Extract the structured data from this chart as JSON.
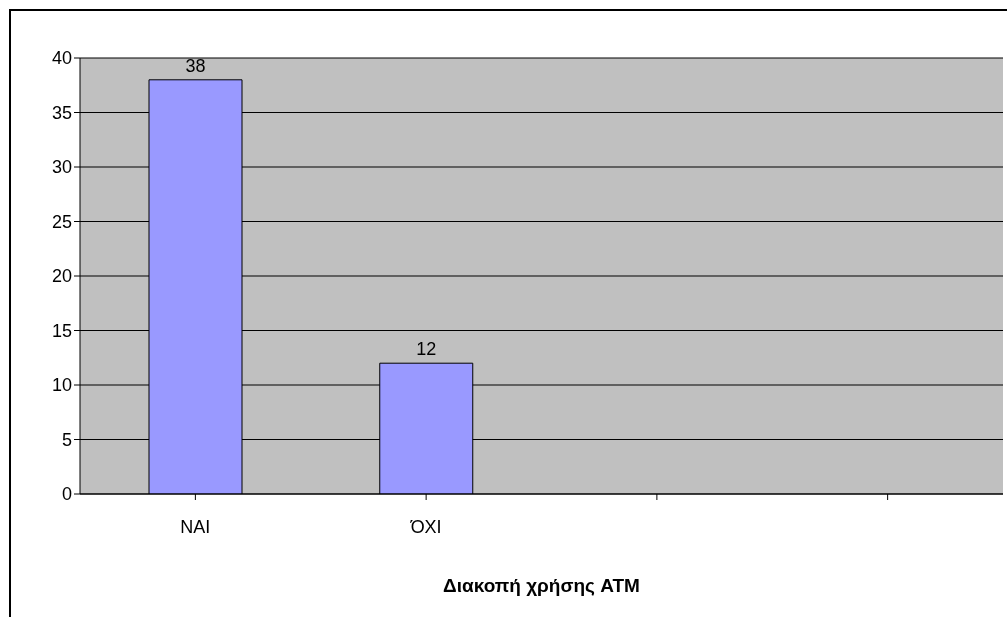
{
  "chart_data": {
    "type": "bar",
    "xlabel": "Διακοπή χρήσης ATM",
    "categories": [
      "NAI",
      "ΌΧΙ",
      null,
      null
    ],
    "values": [
      38,
      12,
      null,
      null
    ],
    "color": "#9999ff",
    "ylim": [
      0,
      40
    ],
    "yticks": [
      0,
      5,
      10,
      15,
      20,
      25,
      30,
      35,
      40
    ],
    "grid": "y",
    "data_labels": true
  }
}
